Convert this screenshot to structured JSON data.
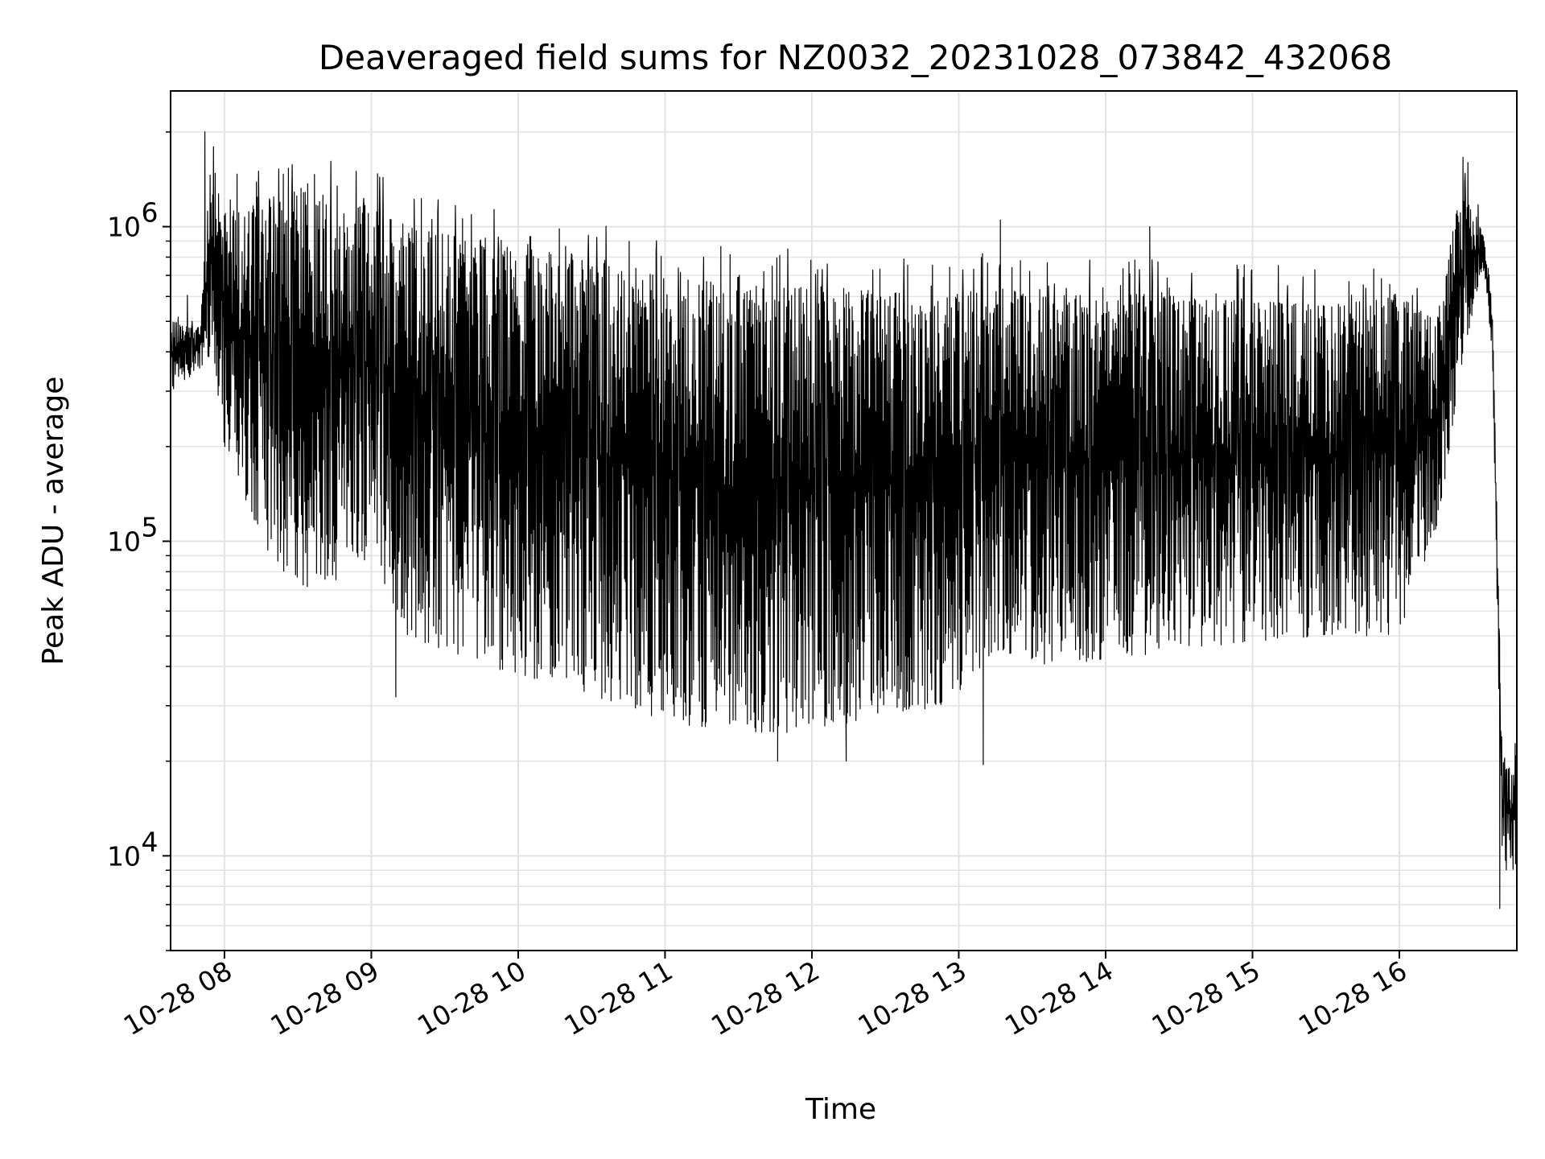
{
  "chart_data": {
    "type": "line",
    "title": "Deaveraged field sums for NZ0032_20231028_073842_432068",
    "xlabel": "Time",
    "ylabel": "Peak ADU - average",
    "yscale": "log",
    "ylim": [
      5000,
      2700000
    ],
    "xlim": [
      "10-28 07:38",
      "10-28 16:48"
    ],
    "grid": true,
    "x_ticks": [
      "10-28 08",
      "10-28 09",
      "10-28 10",
      "10-28 11",
      "10-28 12",
      "10-28 13",
      "10-28 14",
      "10-28 15",
      "10-28 16"
    ],
    "y_ticks": [
      {
        "base": "10",
        "exp": "4",
        "value": 10000
      },
      {
        "base": "10",
        "exp": "5",
        "value": 100000
      },
      {
        "base": "10",
        "exp": "6",
        "value": 1000000
      }
    ],
    "series": [
      {
        "line_color": "#000000",
        "envelope": [
          {
            "time": "10-28 07:38",
            "upper": 500000,
            "lower": 300000
          },
          {
            "time": "10-28 07:50",
            "upper": 480000,
            "lower": 350000
          },
          {
            "time": "10-28 07:55",
            "upper": 1900000,
            "lower": 400000
          },
          {
            "time": "10-28 08:00",
            "upper": 1100000,
            "lower": 200000
          },
          {
            "time": "10-28 08:15",
            "upper": 1200000,
            "lower": 100000
          },
          {
            "time": "10-28 08:30",
            "upper": 1300000,
            "lower": 70000
          },
          {
            "time": "10-28 08:45",
            "upper": 1300000,
            "lower": 75000
          },
          {
            "time": "10-28 09:00",
            "upper": 1150000,
            "lower": 90000
          },
          {
            "time": "10-28 09:15",
            "upper": 1000000,
            "lower": 50000
          },
          {
            "time": "10-28 09:30",
            "upper": 950000,
            "lower": 45000
          },
          {
            "time": "10-28 09:45",
            "upper": 900000,
            "lower": 40000
          },
          {
            "time": "10-28 10:00",
            "upper": 850000,
            "lower": 38000
          },
          {
            "time": "10-28 10:30",
            "upper": 800000,
            "lower": 32000
          },
          {
            "time": "10-28 11:00",
            "upper": 700000,
            "lower": 27000
          },
          {
            "time": "10-28 11:30",
            "upper": 650000,
            "lower": 24000
          },
          {
            "time": "10-28 12:00",
            "upper": 650000,
            "lower": 25000
          },
          {
            "time": "10-28 12:30",
            "upper": 620000,
            "lower": 28000
          },
          {
            "time": "10-28 12:55",
            "upper": 600000,
            "lower": 30000
          },
          {
            "time": "10-28 13:15",
            "upper": 650000,
            "lower": 45000
          },
          {
            "time": "10-28 13:30",
            "upper": 600000,
            "lower": 40000
          },
          {
            "time": "10-28 14:00",
            "upper": 620000,
            "lower": 42000
          },
          {
            "time": "10-28 14:30",
            "upper": 600000,
            "lower": 45000
          },
          {
            "time": "10-28 15:00",
            "upper": 580000,
            "lower": 48000
          },
          {
            "time": "10-28 15:30",
            "upper": 560000,
            "lower": 50000
          },
          {
            "time": "10-28 16:00",
            "upper": 600000,
            "lower": 50000
          },
          {
            "time": "10-28 16:15",
            "upper": 500000,
            "lower": 100000
          },
          {
            "time": "10-28 16:25",
            "upper": 1300000,
            "lower": 350000
          },
          {
            "time": "10-28 16:34",
            "upper": 1000000,
            "lower": 750000
          },
          {
            "time": "10-28 16:38",
            "upper": 600000,
            "lower": 400000
          },
          {
            "time": "10-28 16:42",
            "upper": 20000,
            "lower": 9000
          },
          {
            "time": "10-28 16:48",
            "upper": 20000,
            "lower": 9000
          }
        ],
        "peaks": [
          {
            "time": "10-28 07:52",
            "value": 2000000
          },
          {
            "time": "10-28 13:17",
            "value": 1050000
          },
          {
            "time": "10-28 14:18",
            "value": 1000000
          },
          {
            "time": "10-28 16:28",
            "value": 1600000
          }
        ],
        "dips": [
          {
            "time": "10-28 09:10",
            "value": 32000
          },
          {
            "time": "10-28 11:46",
            "value": 20000
          },
          {
            "time": "10-28 12:14",
            "value": 20000
          },
          {
            "time": "10-28 13:10",
            "value": 19500
          },
          {
            "time": "10-28 16:41",
            "value": 6800
          }
        ]
      }
    ]
  }
}
